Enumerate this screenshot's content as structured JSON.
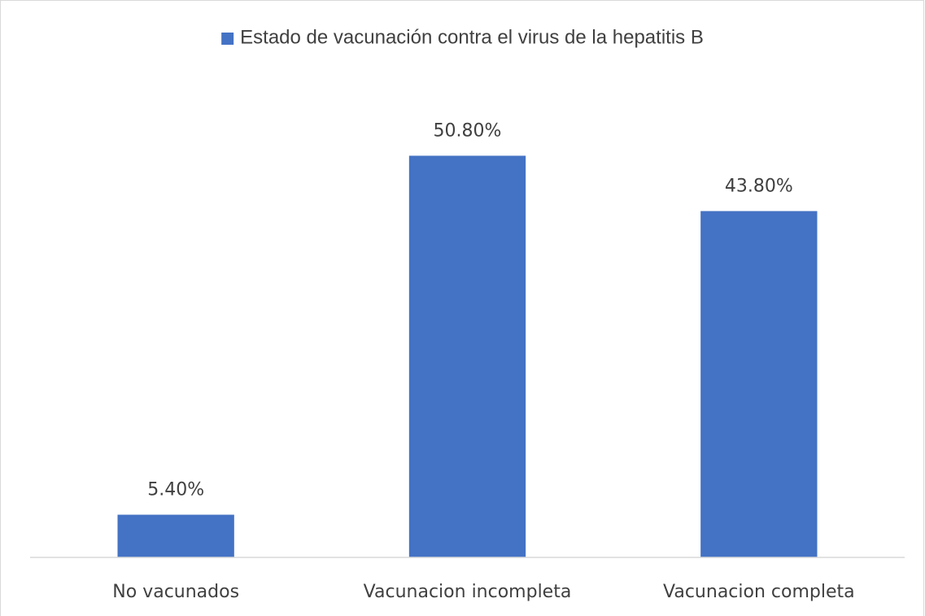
{
  "chart_data": {
    "type": "bar",
    "series": [
      {
        "name": "Estado de vacunación contra el virus de la hepatitis B",
        "color": "#4472c4",
        "values": [
          5.4,
          50.8,
          43.8
        ],
        "value_labels": [
          "5.40%",
          "50.80%",
          "43.80%"
        ]
      }
    ],
    "categories": [
      "No vacunados",
      "Vacunacion incompleta",
      "Vacunacion completa"
    ],
    "ylim": [
      0,
      60
    ],
    "legend": "top"
  }
}
